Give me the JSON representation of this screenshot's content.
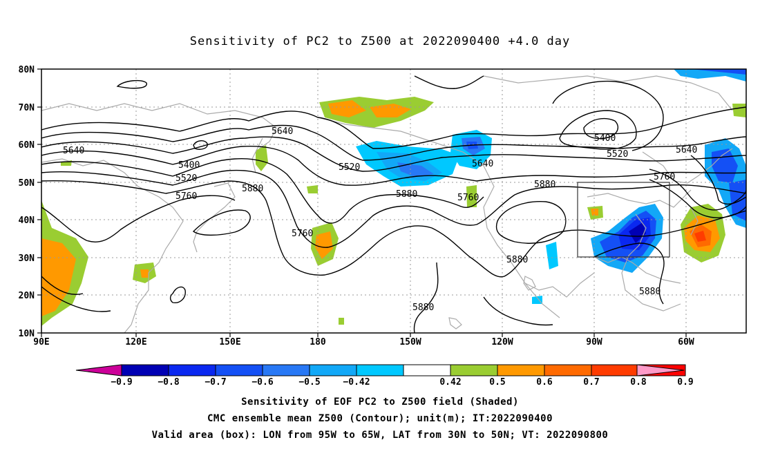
{
  "title": "Sensitivity of PC2 to Z500 at 2022090400 +4.0 day",
  "map": {
    "lat_labels": [
      "80N",
      "70N",
      "60N",
      "50N",
      "40N",
      "30N",
      "20N",
      "10N"
    ],
    "lon_labels": [
      "90E",
      "120E",
      "150E",
      "180",
      "150W",
      "120W",
      "90W",
      "60W"
    ],
    "contour_labels": [
      "5640",
      "5400",
      "5520",
      "5760",
      "5880",
      "5640",
      "5520",
      "5880",
      "5760",
      "5640",
      "5880",
      "5760",
      "5520",
      "5400",
      "5640",
      "5760",
      "5880",
      "5880",
      "5880"
    ],
    "valid_box": {
      "lon_from": "95W",
      "lon_to": "65W",
      "lat_from": "30N",
      "lat_to": "50N"
    }
  },
  "colorbar": {
    "labels": [
      "-0.9",
      "-0.8",
      "-0.7",
      "-0.6",
      "-0.5",
      "-0.42",
      "0.42",
      "0.5",
      "0.6",
      "0.7",
      "0.8",
      "0.9"
    ],
    "colors": [
      "#0000b4",
      "#0a28f0",
      "#1450f5",
      "#2878f5",
      "#12a8f7",
      "#00c8ff",
      "#ffffff",
      "#9acd32",
      "#ff9900",
      "#ff6a00",
      "#ff3c00",
      "#ff0000"
    ],
    "low_color": "#cc0099",
    "high_color": "#ff9ac8"
  },
  "footer": {
    "line1": "Sensitivity of EOF PC2 to Z500 field (Shaded)",
    "line2": "CMC ensemble mean Z500 (Contour); unit(m); IT:2022090400",
    "line3": "Valid area (box): LON from 95W to 65W, LAT from 30N to 50N; VT: 2022090800"
  }
}
